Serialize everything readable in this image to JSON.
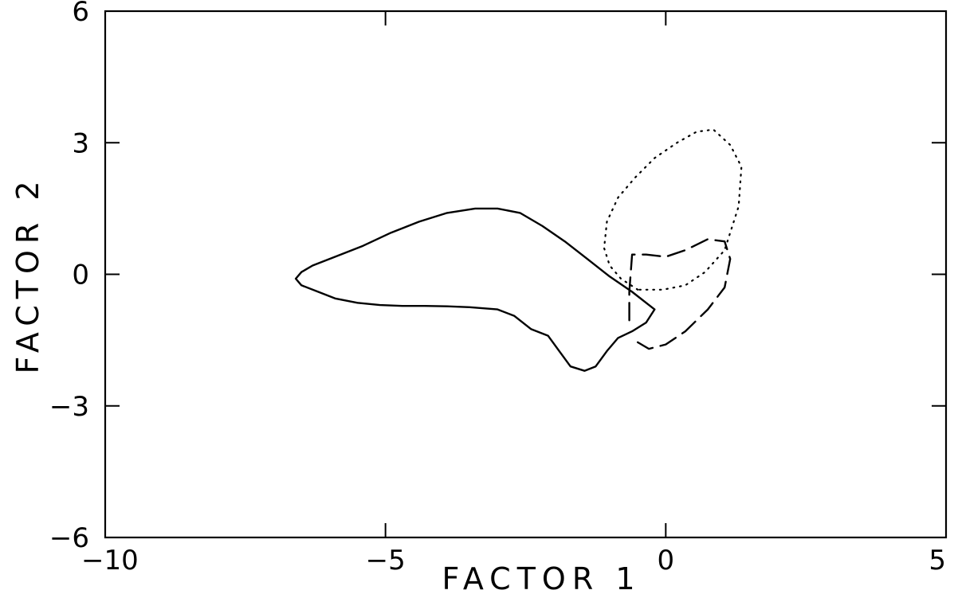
{
  "chart_data": {
    "type": "line",
    "title": "",
    "xlabel": "FACTOR 1",
    "ylabel": "FACTOR 2",
    "xlim": [
      -10,
      5
    ],
    "ylim": [
      -6,
      6
    ],
    "xticks": [
      -10,
      -5,
      0,
      5
    ],
    "yticks": [
      -6,
      -3,
      0,
      3,
      6
    ],
    "xtick_labels": [
      "−10",
      "−5",
      "0",
      "5"
    ],
    "ytick_labels": [
      "−6",
      "−3",
      "0",
      "3",
      "6"
    ],
    "grid": false,
    "series": [
      {
        "style": "solid",
        "color": "#000000",
        "x": [
          -0.2,
          -0.6,
          -1.0,
          -1.4,
          -1.8,
          -2.2,
          -2.6,
          -3.0,
          -3.4,
          -3.9,
          -4.4,
          -4.9,
          -5.4,
          -5.9,
          -6.3,
          -6.5,
          -6.6,
          -6.5,
          -6.2,
          -5.9,
          -5.5,
          -5.1,
          -4.7,
          -4.3,
          -3.9,
          -3.5,
          -3.0,
          -2.7,
          -2.4,
          -2.1,
          -1.9,
          -1.7,
          -1.45,
          -1.25,
          -1.05,
          -0.85,
          -0.6,
          -0.35,
          -0.2
        ],
        "y": [
          -0.8,
          -0.4,
          -0.05,
          0.35,
          0.75,
          1.1,
          1.4,
          1.5,
          1.5,
          1.4,
          1.2,
          0.95,
          0.65,
          0.4,
          0.2,
          0.05,
          -0.1,
          -0.25,
          -0.4,
          -0.55,
          -0.65,
          -0.7,
          -0.72,
          -0.72,
          -0.73,
          -0.75,
          -0.8,
          -0.95,
          -1.25,
          -1.4,
          -1.75,
          -2.1,
          -2.2,
          -2.1,
          -1.75,
          -1.45,
          -1.3,
          -1.1,
          -0.8
        ]
      },
      {
        "style": "dotted",
        "color": "#000000",
        "x": [
          -0.5,
          -0.8,
          -1.0,
          -1.1,
          -1.05,
          -0.85,
          -0.55,
          -0.2,
          0.2,
          0.55,
          0.85,
          1.15,
          1.35,
          1.3,
          1.05,
          0.7,
          0.35,
          -0.05,
          -0.35,
          -0.5
        ],
        "y": [
          -0.35,
          -0.1,
          0.2,
          0.6,
          1.2,
          1.75,
          2.2,
          2.65,
          3.0,
          3.25,
          3.3,
          2.95,
          2.45,
          1.55,
          0.55,
          0.05,
          -0.25,
          -0.35,
          -0.35,
          -0.35
        ]
      },
      {
        "style": "dashed",
        "color": "#000000",
        "x": [
          -0.65,
          -0.65,
          -0.6,
          -0.35,
          0.0,
          0.35,
          0.75,
          1.05,
          1.15,
          1.05,
          0.75,
          0.35,
          0.0,
          -0.3,
          -0.5
        ],
        "y": [
          -1.05,
          -0.4,
          0.45,
          0.45,
          0.4,
          0.55,
          0.8,
          0.75,
          0.35,
          -0.3,
          -0.8,
          -1.3,
          -1.6,
          -1.7,
          -1.55
        ]
      }
    ]
  }
}
